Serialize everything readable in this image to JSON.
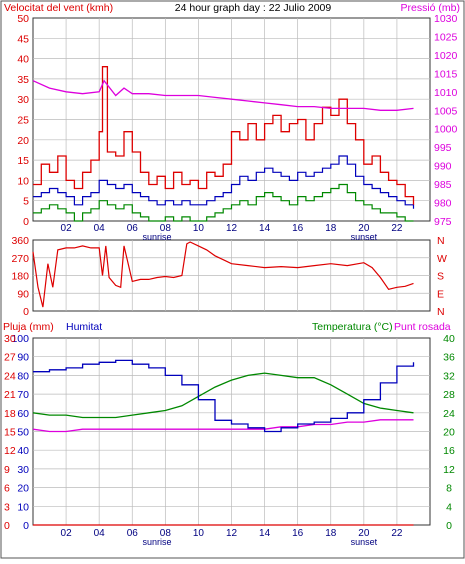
{
  "header": {
    "wind_title": "Velocitat del vent (kmh)",
    "date_title": "24 hour graph day : 22 Julio 2009",
    "pressure_title": "Pressió (mb)"
  },
  "bottom_header": {
    "rain_label": "Pluja (mm)",
    "humidity_label": "Humitat",
    "temp_label": "Temperatura (°C)",
    "dew_label": "Punt rosada"
  },
  "hour_ticks": [
    "02",
    "04",
    "06",
    "08",
    "10",
    "12",
    "14",
    "16",
    "18",
    "20",
    "22"
  ],
  "sunrise_label": "sunrise",
  "sunset_label": "sunset",
  "colors": {
    "wind": "#dd0000",
    "wind_avg": "#0000bb",
    "wind_min": "#008800",
    "pressure": "#dd00dd",
    "direction": "#dd0000",
    "humidity": "#0000bb",
    "temperature": "#008800",
    "dew": "#dd00dd",
    "rain": "#dd0000",
    "grid": "#bbbbbb"
  },
  "chart_data": [
    {
      "type": "line",
      "title": "Velocitat del vent (kmh)",
      "x_unit": "hour",
      "xlim": [
        0,
        24
      ],
      "ylim": [
        0,
        50
      ],
      "yticks": [
        0,
        5,
        10,
        15,
        20,
        25,
        30,
        35,
        40,
        45,
        50
      ],
      "y2label": "Pressió (mb)",
      "y2lim": [
        975,
        1030
      ],
      "y2ticks": [
        975,
        980,
        985,
        990,
        995,
        1000,
        1005,
        1010,
        1015,
        1020,
        1025,
        1030
      ],
      "series": [
        {
          "name": "Velocitat del vent (kmh)",
          "x": [
            0,
            0.5,
            1,
            1.5,
            2,
            2.5,
            3,
            3.5,
            4,
            4.2,
            4.5,
            5,
            5.5,
            6,
            6.5,
            7,
            7.5,
            8,
            8.5,
            9,
            9.5,
            10,
            10.5,
            11,
            11.5,
            12,
            12.5,
            13,
            13.5,
            14,
            14.5,
            15,
            15.5,
            16,
            16.5,
            17,
            17.5,
            18,
            18.5,
            19,
            19.5,
            20,
            20.5,
            21,
            21.5,
            22,
            22.5,
            23
          ],
          "values": [
            9,
            14,
            12,
            16,
            10,
            8,
            12,
            15,
            22,
            38,
            17,
            16,
            22,
            17,
            12,
            9,
            11,
            8,
            12,
            9,
            10,
            8,
            12,
            11,
            14,
            22,
            20,
            24,
            20,
            24,
            26,
            22,
            24,
            25,
            20,
            24,
            28,
            26,
            30,
            24,
            20,
            14,
            16,
            12,
            10,
            9,
            6,
            4
          ]
        },
        {
          "name": "wind average",
          "x": [
            0,
            0.5,
            1,
            1.5,
            2,
            2.5,
            3,
            3.5,
            4,
            4.5,
            5,
            5.5,
            6,
            6.5,
            7,
            7.5,
            8,
            8.5,
            9,
            9.5,
            10,
            10.5,
            11,
            11.5,
            12,
            12.5,
            13,
            13.5,
            14,
            14.5,
            15,
            15.5,
            16,
            16.5,
            17,
            17.5,
            18,
            18.5,
            19,
            19.5,
            20,
            20.5,
            21,
            21.5,
            22,
            22.5,
            23
          ],
          "values": [
            6,
            7,
            8,
            7,
            6,
            4,
            6,
            7,
            10,
            9,
            8,
            9,
            7,
            6,
            5,
            4,
            5,
            4,
            5,
            4,
            4,
            5,
            6,
            7,
            9,
            11,
            10,
            12,
            13,
            12,
            11,
            10,
            12,
            11,
            12,
            13,
            14,
            16,
            14,
            11,
            9,
            8,
            7,
            6,
            5,
            4,
            3
          ]
        },
        {
          "name": "wind minimum",
          "x": [
            0,
            0.5,
            1,
            1.5,
            2,
            2.5,
            3,
            3.5,
            4,
            4.5,
            5,
            5.5,
            6,
            6.5,
            7,
            7.5,
            8,
            8.5,
            9,
            9.5,
            10,
            10.5,
            11,
            11.5,
            12,
            12.5,
            13,
            13.5,
            14,
            14.5,
            15,
            15.5,
            16,
            16.5,
            17,
            17.5,
            18,
            18.5,
            19,
            19.5,
            20,
            20.5,
            21,
            21.5,
            22,
            22.5,
            23
          ],
          "values": [
            2,
            3,
            4,
            3,
            2,
            0,
            2,
            3,
            5,
            4,
            3,
            4,
            2,
            1,
            0,
            0,
            1,
            0,
            1,
            0,
            0,
            1,
            2,
            3,
            4,
            5,
            4,
            6,
            7,
            6,
            5,
            4,
            6,
            5,
            6,
            7,
            8,
            9,
            7,
            5,
            4,
            3,
            2,
            2,
            1,
            0,
            0
          ]
        },
        {
          "name": "Pressió (mb)",
          "axis": "y2",
          "x": [
            0,
            1,
            2,
            3,
            4,
            4.3,
            5,
            5.5,
            6,
            7,
            8,
            9,
            10,
            11,
            12,
            13,
            14,
            15,
            16,
            17,
            18,
            19,
            20,
            21,
            22,
            23
          ],
          "values": [
            1013,
            1011,
            1010,
            1009.5,
            1010,
            1013,
            1009,
            1011,
            1009.5,
            1009.5,
            1009,
            1009,
            1009,
            1008.5,
            1008,
            1007.5,
            1007,
            1006.5,
            1006,
            1006,
            1005.5,
            1005.5,
            1005.5,
            1005,
            1005,
            1005.5
          ]
        }
      ]
    },
    {
      "type": "line",
      "x_unit": "hour",
      "xlim": [
        0,
        24
      ],
      "ylim": [
        0,
        360
      ],
      "yticks": [
        0,
        90,
        180,
        270,
        360
      ],
      "y2ticks": [
        "N",
        "W",
        "S",
        "E",
        "N"
      ],
      "series": [
        {
          "name": "wind direction",
          "x": [
            0,
            0.3,
            0.6,
            0.9,
            1.2,
            1.5,
            2,
            2.5,
            3,
            3.5,
            4,
            4.2,
            4.4,
            4.6,
            5,
            5.3,
            5.5,
            6,
            6.5,
            7,
            7.5,
            8,
            8.5,
            9,
            9.3,
            9.5,
            10,
            10.5,
            11,
            11.5,
            12,
            13,
            14,
            15,
            16,
            17,
            18,
            19,
            20,
            20.5,
            21,
            21.5,
            22,
            22.5,
            23
          ],
          "values": [
            300,
            120,
            20,
            240,
            120,
            310,
            320,
            320,
            330,
            320,
            320,
            180,
            330,
            170,
            130,
            120,
            330,
            150,
            160,
            160,
            170,
            175,
            170,
            180,
            340,
            350,
            330,
            310,
            280,
            260,
            240,
            230,
            220,
            225,
            220,
            230,
            240,
            230,
            245,
            220,
            170,
            110,
            120,
            125,
            140
          ]
        }
      ]
    },
    {
      "type": "line",
      "x_unit": "hour",
      "xlim": [
        0,
        24
      ],
      "ylim": [
        0,
        100
      ],
      "yticks": [
        0,
        10,
        20,
        30,
        40,
        50,
        60,
        70,
        80,
        90,
        100
      ],
      "rain_ticks": [
        0,
        3,
        6,
        9,
        12,
        15,
        18,
        21,
        24,
        27,
        30
      ],
      "y2lim": [
        0,
        40
      ],
      "y2ticks": [
        0,
        4,
        8,
        12,
        16,
        20,
        24,
        28,
        32,
        36,
        40
      ],
      "series": [
        {
          "name": "Humitat",
          "x": [
            0,
            1,
            2,
            3,
            4,
            5,
            6,
            7,
            8,
            9,
            10,
            11,
            12,
            13,
            14,
            15,
            16,
            17,
            18,
            19,
            20,
            21,
            22,
            23
          ],
          "values": [
            82,
            83,
            84,
            86,
            87,
            88,
            86,
            84,
            80,
            75,
            67,
            56,
            54,
            52,
            50,
            52,
            54,
            55,
            57,
            60,
            67,
            76,
            85,
            87
          ]
        },
        {
          "name": "Temperatura (°C)",
          "axis": "y2",
          "x": [
            0,
            1,
            2,
            3,
            4,
            5,
            6,
            7,
            8,
            9,
            10,
            11,
            12,
            13,
            14,
            15,
            16,
            17,
            18,
            19,
            20,
            21,
            22,
            23
          ],
          "values": [
            24,
            23.5,
            23.5,
            23,
            23,
            23,
            23.5,
            24,
            24.5,
            25.5,
            27.5,
            29.5,
            31,
            32,
            32.5,
            32,
            31.5,
            31.5,
            30,
            28,
            26,
            25,
            24.5,
            24
          ]
        },
        {
          "name": "Punt rosada",
          "axis": "y2",
          "x": [
            0,
            1,
            2,
            3,
            4,
            5,
            6,
            7,
            8,
            9,
            10,
            11,
            12,
            13,
            14,
            15,
            16,
            17,
            18,
            19,
            20,
            21,
            22,
            23
          ],
          "values": [
            20.5,
            20,
            20,
            20.5,
            20.5,
            20.5,
            20.5,
            20.5,
            20.5,
            20.5,
            20.5,
            20.5,
            20.5,
            20.5,
            20.5,
            21,
            21,
            21.5,
            21.5,
            22,
            22,
            22.5,
            22.5,
            22.5
          ]
        },
        {
          "name": "Pluja (mm)",
          "x": [
            0,
            23
          ],
          "values": [
            0,
            0
          ]
        }
      ]
    }
  ]
}
